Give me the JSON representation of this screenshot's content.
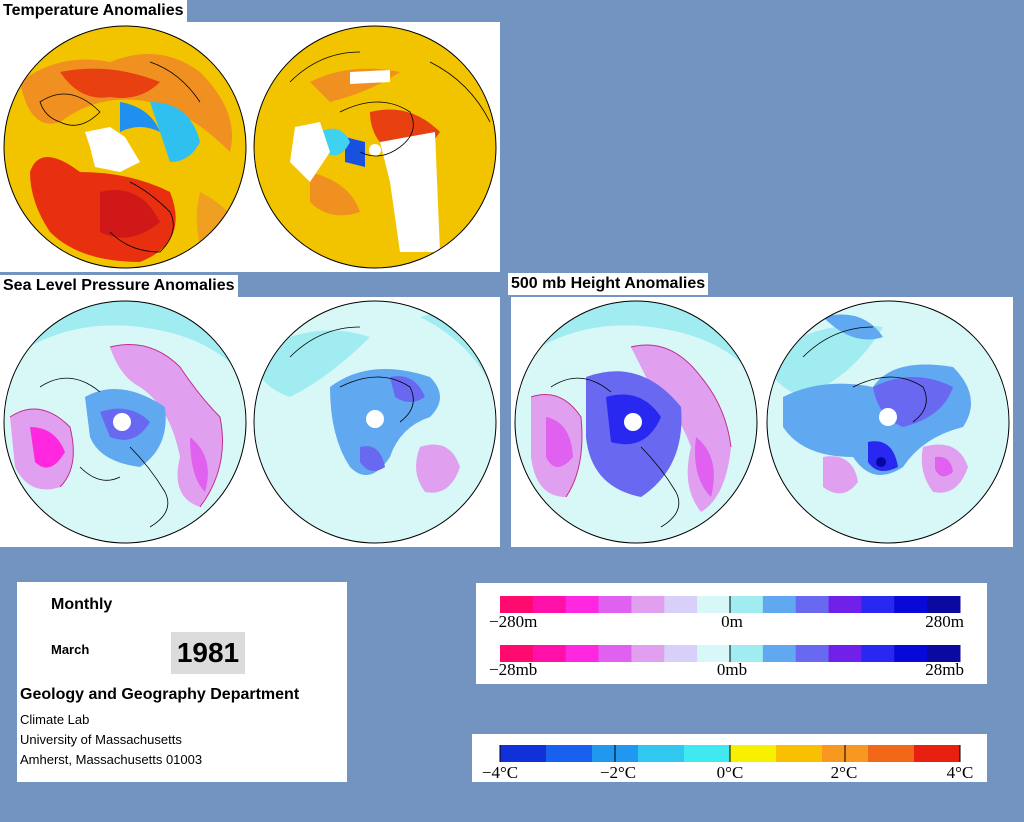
{
  "panels": {
    "temperature": {
      "title": "Temperature Anomalies"
    },
    "slp": {
      "title": "Sea Level Pressure Anomalies"
    },
    "height500": {
      "title": "500 mb Height Anomalies"
    }
  },
  "info": {
    "period_type": "Monthly",
    "month": "March",
    "year": "1981",
    "department": "Geology and Geography Department",
    "address_lines": [
      "Climate Lab",
      "University of Massachusetts",
      "Amherst, Massachusetts 01003"
    ]
  },
  "legends": {
    "height": {
      "left": "−280m",
      "center": "0m",
      "right": "280m"
    },
    "pressure": {
      "left": "−28mb",
      "center": "0mb",
      "right": "28mb"
    },
    "temperature": {
      "labels": [
        "−4°C",
        "−2°C",
        "0°C",
        "2°C",
        "4°C"
      ]
    }
  },
  "colors": {
    "background": "#7393c0",
    "contour_scale": [
      "#ff0a6e",
      "#ff10a8",
      "#ff28e0",
      "#e060f0",
      "#e0a0ef",
      "#d8d0f8",
      "#d8f8f8",
      "#a0ecf0",
      "#60a8f0",
      "#6868f0",
      "#7020e8",
      "#2828f0",
      "#0808d8",
      "#0a0aa0"
    ],
    "temperature_scale": [
      "#1030d8",
      "#1860f0",
      "#2098f0",
      "#30c8f0",
      "#40e8f0",
      "#f8f000",
      "#f8c000",
      "#f89820",
      "#f06818",
      "#e82010"
    ]
  }
}
